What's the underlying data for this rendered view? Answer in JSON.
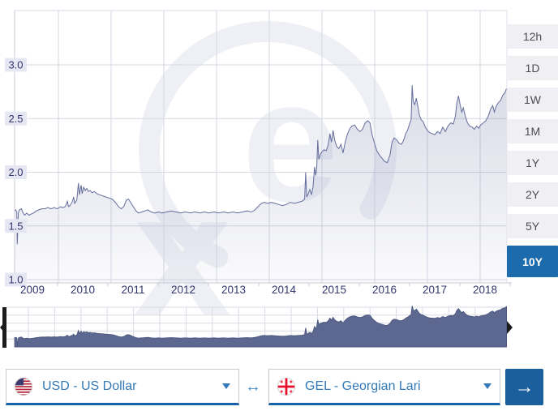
{
  "chart_data": {
    "type": "area",
    "series": [
      {
        "name": "USD to GEL",
        "points": [
          [
            2009.17,
            1.64
          ],
          [
            2009.19,
            1.65
          ],
          [
            2009.21,
            1.63
          ],
          [
            2009.22,
            1.33
          ],
          [
            2009.24,
            1.62
          ],
          [
            2009.26,
            1.65
          ],
          [
            2009.3,
            1.66
          ],
          [
            2009.33,
            1.62
          ],
          [
            2009.36,
            1.6
          ],
          [
            2009.4,
            1.62
          ],
          [
            2009.44,
            1.6
          ],
          [
            2009.48,
            1.61
          ],
          [
            2009.53,
            1.62
          ],
          [
            2009.58,
            1.64
          ],
          [
            2009.63,
            1.65
          ],
          [
            2009.68,
            1.66
          ],
          [
            2009.74,
            1.66
          ],
          [
            2009.8,
            1.67
          ],
          [
            2009.86,
            1.66
          ],
          [
            2009.92,
            1.67
          ],
          [
            2009.98,
            1.66
          ],
          [
            2010.04,
            1.68
          ],
          [
            2010.08,
            1.67
          ],
          [
            2010.13,
            1.68
          ],
          [
            2010.17,
            1.73
          ],
          [
            2010.19,
            1.68
          ],
          [
            2010.22,
            1.69
          ],
          [
            2010.26,
            1.72
          ],
          [
            2010.29,
            1.77
          ],
          [
            2010.31,
            1.71
          ],
          [
            2010.35,
            1.74
          ],
          [
            2010.38,
            1.9
          ],
          [
            2010.4,
            1.79
          ],
          [
            2010.43,
            1.88
          ],
          [
            2010.45,
            1.8
          ],
          [
            2010.48,
            1.86
          ],
          [
            2010.51,
            1.83
          ],
          [
            2010.54,
            1.85
          ],
          [
            2010.57,
            1.82
          ],
          [
            2010.6,
            1.83
          ],
          [
            2010.64,
            1.81
          ],
          [
            2010.68,
            1.82
          ],
          [
            2010.73,
            1.8
          ],
          [
            2010.78,
            1.79
          ],
          [
            2010.84,
            1.78
          ],
          [
            2010.9,
            1.77
          ],
          [
            2010.96,
            1.76
          ],
          [
            2011.02,
            1.75
          ],
          [
            2011.08,
            1.72
          ],
          [
            2011.14,
            1.68
          ],
          [
            2011.19,
            1.66
          ],
          [
            2011.24,
            1.68
          ],
          [
            2011.29,
            1.74
          ],
          [
            2011.33,
            1.75
          ],
          [
            2011.37,
            1.72
          ],
          [
            2011.42,
            1.68
          ],
          [
            2011.47,
            1.64
          ],
          [
            2011.52,
            1.62
          ],
          [
            2011.58,
            1.63
          ],
          [
            2011.64,
            1.64
          ],
          [
            2011.7,
            1.65
          ],
          [
            2011.76,
            1.63
          ],
          [
            2011.83,
            1.62
          ],
          [
            2011.9,
            1.63
          ],
          [
            2011.97,
            1.62
          ],
          [
            2012.05,
            1.63
          ],
          [
            2012.14,
            1.64
          ],
          [
            2012.23,
            1.63
          ],
          [
            2012.32,
            1.62
          ],
          [
            2012.41,
            1.63
          ],
          [
            2012.5,
            1.62
          ],
          [
            2012.59,
            1.63
          ],
          [
            2012.68,
            1.62
          ],
          [
            2012.77,
            1.63
          ],
          [
            2012.86,
            1.62
          ],
          [
            2012.95,
            1.63
          ],
          [
            2013.04,
            1.62
          ],
          [
            2013.13,
            1.63
          ],
          [
            2013.22,
            1.62
          ],
          [
            2013.31,
            1.63
          ],
          [
            2013.4,
            1.62
          ],
          [
            2013.49,
            1.63
          ],
          [
            2013.58,
            1.64
          ],
          [
            2013.66,
            1.63
          ],
          [
            2013.73,
            1.65
          ],
          [
            2013.79,
            1.68
          ],
          [
            2013.85,
            1.71
          ],
          [
            2013.91,
            1.72
          ],
          [
            2013.97,
            1.71
          ],
          [
            2014.04,
            1.72
          ],
          [
            2014.11,
            1.71
          ],
          [
            2014.18,
            1.7
          ],
          [
            2014.25,
            1.69
          ],
          [
            2014.32,
            1.7
          ],
          [
            2014.4,
            1.72
          ],
          [
            2014.48,
            1.71
          ],
          [
            2014.55,
            1.72
          ],
          [
            2014.62,
            1.73
          ],
          [
            2014.67,
            1.75
          ],
          [
            2014.69,
            2.0
          ],
          [
            2014.71,
            1.77
          ],
          [
            2014.74,
            1.8
          ],
          [
            2014.77,
            1.84
          ],
          [
            2014.8,
            1.79
          ],
          [
            2014.83,
            1.86
          ],
          [
            2014.86,
            2.05
          ],
          [
            2014.88,
            1.97
          ],
          [
            2014.9,
            2.04
          ],
          [
            2014.92,
            2.3
          ],
          [
            2014.94,
            2.12
          ],
          [
            2014.97,
            2.17
          ],
          [
            2015.0,
            2.19
          ],
          [
            2015.04,
            2.21
          ],
          [
            2015.08,
            2.2
          ],
          [
            2015.12,
            2.26
          ],
          [
            2015.15,
            2.36
          ],
          [
            2015.18,
            2.28
          ],
          [
            2015.21,
            2.39
          ],
          [
            2015.24,
            2.3
          ],
          [
            2015.28,
            2.24
          ],
          [
            2015.32,
            2.22
          ],
          [
            2015.36,
            2.26
          ],
          [
            2015.4,
            2.18
          ],
          [
            2015.44,
            2.28
          ],
          [
            2015.48,
            2.35
          ],
          [
            2015.52,
            2.4
          ],
          [
            2015.57,
            2.43
          ],
          [
            2015.62,
            2.44
          ],
          [
            2015.67,
            2.4
          ],
          [
            2015.72,
            2.38
          ],
          [
            2015.77,
            2.4
          ],
          [
            2015.82,
            2.46
          ],
          [
            2015.87,
            2.48
          ],
          [
            2015.91,
            2.46
          ],
          [
            2015.95,
            2.35
          ],
          [
            2015.99,
            2.28
          ],
          [
            2016.04,
            2.2
          ],
          [
            2016.09,
            2.16
          ],
          [
            2016.14,
            2.13
          ],
          [
            2016.19,
            2.1
          ],
          [
            2016.24,
            2.09
          ],
          [
            2016.29,
            2.16
          ],
          [
            2016.33,
            2.28
          ],
          [
            2016.37,
            2.32
          ],
          [
            2016.42,
            2.3
          ],
          [
            2016.46,
            2.27
          ],
          [
            2016.51,
            2.26
          ],
          [
            2016.55,
            2.3
          ],
          [
            2016.59,
            2.36
          ],
          [
            2016.63,
            2.4
          ],
          [
            2016.66,
            2.45
          ],
          [
            2016.69,
            2.49
          ],
          [
            2016.71,
            2.81
          ],
          [
            2016.73,
            2.66
          ],
          [
            2016.76,
            2.63
          ],
          [
            2016.79,
            2.69
          ],
          [
            2016.82,
            2.61
          ],
          [
            2016.85,
            2.53
          ],
          [
            2016.88,
            2.49
          ],
          [
            2016.92,
            2.47
          ],
          [
            2016.96,
            2.42
          ],
          [
            2017.0,
            2.39
          ],
          [
            2017.04,
            2.37
          ],
          [
            2017.09,
            2.36
          ],
          [
            2017.14,
            2.35
          ],
          [
            2017.19,
            2.38
          ],
          [
            2017.24,
            2.36
          ],
          [
            2017.29,
            2.42
          ],
          [
            2017.34,
            2.38
          ],
          [
            2017.39,
            2.43
          ],
          [
            2017.44,
            2.46
          ],
          [
            2017.49,
            2.45
          ],
          [
            2017.53,
            2.52
          ],
          [
            2017.56,
            2.65
          ],
          [
            2017.59,
            2.71
          ],
          [
            2017.62,
            2.63
          ],
          [
            2017.65,
            2.56
          ],
          [
            2017.68,
            2.6
          ],
          [
            2017.72,
            2.52
          ],
          [
            2017.76,
            2.46
          ],
          [
            2017.8,
            2.43
          ],
          [
            2017.85,
            2.42
          ],
          [
            2017.89,
            2.4
          ],
          [
            2017.93,
            2.43
          ],
          [
            2017.97,
            2.41
          ],
          [
            2018.01,
            2.44
          ],
          [
            2018.06,
            2.46
          ],
          [
            2018.11,
            2.48
          ],
          [
            2018.16,
            2.53
          ],
          [
            2018.2,
            2.59
          ],
          [
            2018.24,
            2.62
          ],
          [
            2018.27,
            2.56
          ],
          [
            2018.31,
            2.62
          ],
          [
            2018.35,
            2.65
          ],
          [
            2018.39,
            2.67
          ],
          [
            2018.43,
            2.72
          ],
          [
            2018.47,
            2.74
          ],
          [
            2018.5,
            2.78
          ]
        ]
      }
    ],
    "x_ticks": [
      "2009",
      "2010",
      "2011",
      "2012",
      "2013",
      "2014",
      "2015",
      "2016",
      "2017",
      "2018"
    ],
    "y_ticks": [
      1.0,
      1.5,
      2.0,
      2.5,
      3.0
    ],
    "ylim": [
      0.87,
      3.5
    ],
    "xlim": [
      2009.17,
      2018.51
    ],
    "grid": true,
    "legend": "none",
    "has_navigator": true
  },
  "watermark": {
    "text": "xe",
    "icon": "xe-logo-watermark"
  },
  "range_selector": {
    "options": [
      "12h",
      "1D",
      "1W",
      "1M",
      "1Y",
      "2Y",
      "5Y",
      "10Y"
    ],
    "selected": "10Y"
  },
  "converter": {
    "from": {
      "label": "USD - US Dollar",
      "flag_icon": "us-flag"
    },
    "to": {
      "label": "GEL - Georgian Lari",
      "flag_icon": "georgia-flag"
    },
    "swap_icon": "↔",
    "submit_icon": "→",
    "caret_icon": "chevron-down"
  },
  "colors": {
    "selected_range_bg": "#1c6bad",
    "range_bg": "#f0f0f4",
    "range_text": "#4b4b55",
    "line": "#646d9c",
    "area_fill_base": "#666f9e",
    "navigator_fill": "#5d6890",
    "axis_label_text": "#32366e",
    "ylabel_bg": "#e6e7f3",
    "gridline": "#d6d7e2",
    "link_blue": "#3279b7",
    "underline_blue": "#1a62a8",
    "submit_bg": "#1c5f9e",
    "watermark": "#eff0f6"
  }
}
